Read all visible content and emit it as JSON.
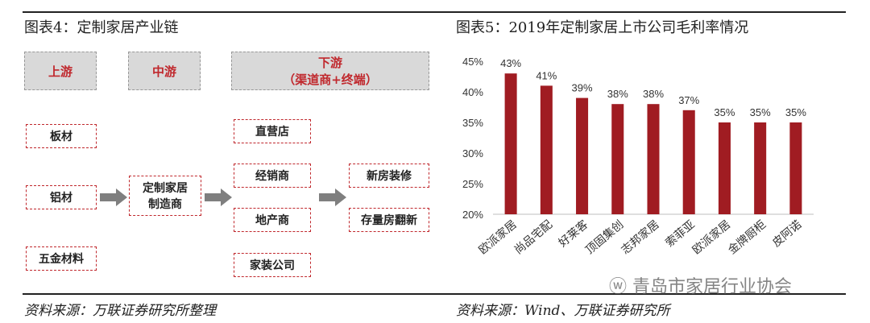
{
  "left_panel": {
    "title": "图表4：定制家居产业链",
    "stages": {
      "upstream": "上游",
      "midstream": "中游",
      "downstream": "下游",
      "downstream_sub": "（渠道商+终端）"
    },
    "upstream_items": [
      "板材",
      "铝材",
      "五金材料"
    ],
    "mid_item": [
      "定制家居",
      "制造商"
    ],
    "channel_items": [
      "直营店",
      "经销商",
      "地产商",
      "家装公司"
    ],
    "terminal_items": [
      "新房装修",
      "存量房翻新"
    ],
    "source": "资料来源：万联证券研究所整理"
  },
  "right_panel": {
    "title": "图表5：2019年定制家居上市公司毛利率情况",
    "source": "资料来源：Wind、万联证券研究所"
  },
  "watermark": "青岛市家居行业协会",
  "colors": {
    "bar": "#a01c22",
    "accent": "#c0282d",
    "stage_bg": "#d9d9d9"
  },
  "chart_data": {
    "type": "bar",
    "title": "",
    "xlabel": "",
    "ylabel": "",
    "categories": [
      "欧派家居",
      "尚品宅配",
      "好莱客",
      "顶固集创",
      "志邦家居",
      "索菲亚",
      "欧派家居",
      "金牌厨柜",
      "皮阿诺"
    ],
    "values": [
      43,
      41,
      39,
      38,
      38,
      37,
      35,
      35,
      35
    ],
    "data_labels": [
      "43%",
      "41%",
      "39%",
      "38%",
      "38%",
      "37%",
      "35%",
      "35%",
      "35%"
    ],
    "ylim": [
      20,
      45
    ],
    "yticks": [
      "20%",
      "25%",
      "30%",
      "35%",
      "40%",
      "45%"
    ],
    "grid": false
  }
}
